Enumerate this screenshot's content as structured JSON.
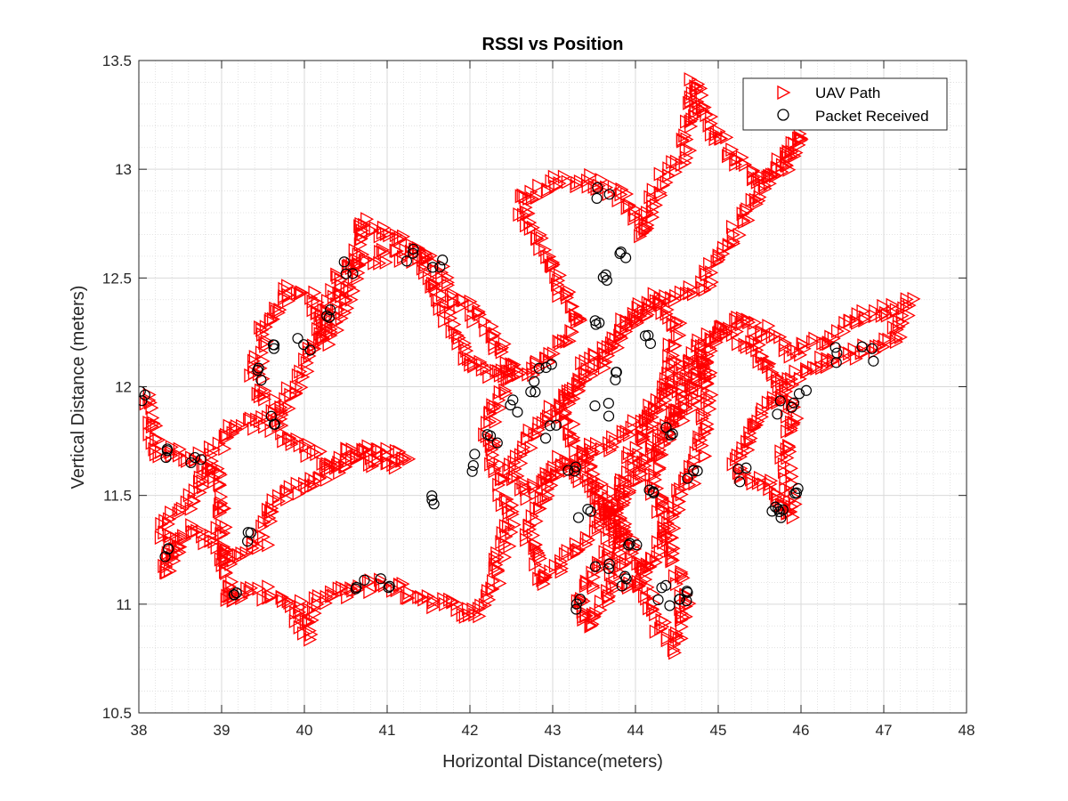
{
  "chart_data": {
    "type": "scatter",
    "title": "RSSI vs Position",
    "xlabel": "Horizontal Distance(meters)",
    "ylabel": "Vertical Distance (meters)",
    "xlim": [
      38,
      48
    ],
    "ylim": [
      10.5,
      13.5
    ],
    "xticks": [
      "38",
      "39",
      "40",
      "41",
      "42",
      "43",
      "44",
      "45",
      "46",
      "47",
      "48"
    ],
    "yticks": [
      "10.5",
      "11",
      "11.5",
      "12",
      "12.5",
      "13",
      "13.5"
    ],
    "grid": true,
    "minor_grid": true,
    "legend_position": "top-right",
    "series": [
      {
        "name": "UAV Path",
        "marker": "triangle-right",
        "color": "#ff0000",
        "path_anchors": [
          [
            38.1,
            11.95
          ],
          [
            38.2,
            11.7
          ],
          [
            38.4,
            11.7
          ],
          [
            38.9,
            11.65
          ],
          [
            38.6,
            11.45
          ],
          [
            38.3,
            11.35
          ],
          [
            38.4,
            11.2
          ],
          [
            38.3,
            11.15
          ],
          [
            38.6,
            11.35
          ],
          [
            39.0,
            11.25
          ],
          [
            39.1,
            11.2
          ],
          [
            39.5,
            11.3
          ],
          [
            39.6,
            11.45
          ],
          [
            40.0,
            11.55
          ],
          [
            40.3,
            11.6
          ],
          [
            40.7,
            11.7
          ],
          [
            41.1,
            11.7
          ],
          [
            41.2,
            11.65
          ],
          [
            40.9,
            11.65
          ],
          [
            40.6,
            11.7
          ],
          [
            40.3,
            11.65
          ],
          [
            39.9,
            11.75
          ],
          [
            39.5,
            11.85
          ],
          [
            39.1,
            11.8
          ],
          [
            38.9,
            11.7
          ],
          [
            39.1,
            11.0
          ],
          [
            39.2,
            11.05
          ],
          [
            39.6,
            11.05
          ],
          [
            39.9,
            11.0
          ],
          [
            40.0,
            10.85
          ],
          [
            40.1,
            11.0
          ],
          [
            40.4,
            11.05
          ],
          [
            40.9,
            11.1
          ],
          [
            41.3,
            11.05
          ],
          [
            41.7,
            11.0
          ],
          [
            42.1,
            10.95
          ],
          [
            42.3,
            11.1
          ],
          [
            42.5,
            11.4
          ],
          [
            42.2,
            11.8
          ],
          [
            42.5,
            12.1
          ],
          [
            42.2,
            12.3
          ],
          [
            41.8,
            12.4
          ],
          [
            41.6,
            12.55
          ],
          [
            41.3,
            12.65
          ],
          [
            41.0,
            12.7
          ],
          [
            40.7,
            12.75
          ],
          [
            40.6,
            12.5
          ],
          [
            40.3,
            12.2
          ],
          [
            40.1,
            12.4
          ],
          [
            39.8,
            12.45
          ],
          [
            39.5,
            12.25
          ],
          [
            39.4,
            12.05
          ],
          [
            39.7,
            11.85
          ],
          [
            40.0,
            12.1
          ],
          [
            40.3,
            12.35
          ],
          [
            40.5,
            12.55
          ],
          [
            40.9,
            12.6
          ],
          [
            41.4,
            12.6
          ],
          [
            41.7,
            12.35
          ],
          [
            42.0,
            12.1
          ],
          [
            42.4,
            12.05
          ],
          [
            42.9,
            12.1
          ],
          [
            43.3,
            12.3
          ],
          [
            43.0,
            12.55
          ],
          [
            42.6,
            12.85
          ],
          [
            43.1,
            12.95
          ],
          [
            43.5,
            12.95
          ],
          [
            43.9,
            12.85
          ],
          [
            44.1,
            12.7
          ],
          [
            44.3,
            12.95
          ],
          [
            44.6,
            13.05
          ],
          [
            44.7,
            13.4
          ],
          [
            44.9,
            13.2
          ],
          [
            45.1,
            13.1
          ],
          [
            45.5,
            12.95
          ],
          [
            45.8,
            13.0
          ],
          [
            46.0,
            13.15
          ],
          [
            45.6,
            12.95
          ],
          [
            45.3,
            12.75
          ],
          [
            45.0,
            12.6
          ],
          [
            44.8,
            12.45
          ],
          [
            44.4,
            12.4
          ],
          [
            44.0,
            12.3
          ],
          [
            43.7,
            12.2
          ],
          [
            43.4,
            12.1
          ],
          [
            43.1,
            11.9
          ],
          [
            43.3,
            11.7
          ],
          [
            43.6,
            11.5
          ],
          [
            43.9,
            11.3
          ],
          [
            44.1,
            11.1
          ],
          [
            44.3,
            10.9
          ],
          [
            44.5,
            10.8
          ],
          [
            44.6,
            11.0
          ],
          [
            44.4,
            11.3
          ],
          [
            44.2,
            11.6
          ],
          [
            44.5,
            11.9
          ],
          [
            44.8,
            12.2
          ],
          [
            45.2,
            12.3
          ],
          [
            45.6,
            12.25
          ],
          [
            45.9,
            12.15
          ],
          [
            46.2,
            12.2
          ],
          [
            46.6,
            12.3
          ],
          [
            47.0,
            12.35
          ],
          [
            47.3,
            12.4
          ],
          [
            47.1,
            12.2
          ],
          [
            46.6,
            12.15
          ],
          [
            46.2,
            12.1
          ],
          [
            45.8,
            12.0
          ],
          [
            45.6,
            11.9
          ],
          [
            45.4,
            11.8
          ],
          [
            45.2,
            11.6
          ],
          [
            45.6,
            11.55
          ],
          [
            45.9,
            11.4
          ],
          [
            45.8,
            11.7
          ],
          [
            45.9,
            11.9
          ],
          [
            45.4,
            12.2
          ],
          [
            45.0,
            12.25
          ],
          [
            44.6,
            11.9
          ],
          [
            44.2,
            11.7
          ],
          [
            43.9,
            11.5
          ],
          [
            43.6,
            11.2
          ],
          [
            43.3,
            11.0
          ],
          [
            43.4,
            10.9
          ],
          [
            43.7,
            11.05
          ],
          [
            43.9,
            11.3
          ],
          [
            43.5,
            11.55
          ],
          [
            43.1,
            11.65
          ],
          [
            42.7,
            11.5
          ],
          [
            42.5,
            11.6
          ],
          [
            42.8,
            11.8
          ],
          [
            43.2,
            11.95
          ],
          [
            43.6,
            12.1
          ],
          [
            43.9,
            12.3
          ],
          [
            44.2,
            12.4
          ],
          [
            44.5,
            12.3
          ],
          [
            44.4,
            12.0
          ],
          [
            44.1,
            11.85
          ],
          [
            43.8,
            11.75
          ],
          [
            43.4,
            11.7
          ],
          [
            43.0,
            11.6
          ],
          [
            42.7,
            11.3
          ],
          [
            42.9,
            11.1
          ],
          [
            43.3,
            11.25
          ],
          [
            43.7,
            11.45
          ],
          [
            44.0,
            11.7
          ],
          [
            44.3,
            11.95
          ],
          [
            44.6,
            12.1
          ],
          [
            44.9,
            12.1
          ],
          [
            44.8,
            11.7
          ],
          [
            44.5,
            11.45
          ],
          [
            44.2,
            11.2
          ],
          [
            43.9,
            11.05
          ]
        ]
      },
      {
        "name": "Packet Received",
        "marker": "circle",
        "color": "#000000",
        "path_anchors": [
          [
            38.1,
            11.95
          ],
          [
            38.3,
            11.7
          ],
          [
            38.3,
            11.25
          ],
          [
            38.7,
            11.65
          ],
          [
            39.2,
            11.05
          ],
          [
            39.4,
            11.3
          ],
          [
            39.6,
            11.85
          ],
          [
            39.5,
            12.05
          ],
          [
            39.7,
            12.2
          ],
          [
            40.0,
            12.2
          ],
          [
            40.3,
            12.35
          ],
          [
            40.5,
            12.55
          ],
          [
            41.3,
            12.6
          ],
          [
            41.6,
            12.55
          ],
          [
            40.7,
            11.1
          ],
          [
            41.0,
            11.1
          ],
          [
            41.6,
            11.5
          ],
          [
            42.1,
            11.65
          ],
          [
            42.3,
            11.75
          ],
          [
            42.5,
            11.9
          ],
          [
            42.7,
            12.0
          ],
          [
            42.9,
            12.1
          ],
          [
            43.0,
            11.8
          ],
          [
            43.2,
            11.65
          ],
          [
            43.4,
            11.4
          ],
          [
            43.6,
            11.2
          ],
          [
            43.3,
            11.0
          ],
          [
            43.8,
            11.1
          ],
          [
            44.0,
            11.3
          ],
          [
            44.3,
            11.05
          ],
          [
            44.5,
            11.0
          ],
          [
            44.6,
            11.05
          ],
          [
            44.2,
            11.5
          ],
          [
            44.4,
            11.8
          ],
          [
            44.7,
            11.6
          ],
          [
            43.6,
            11.9
          ],
          [
            43.8,
            12.05
          ],
          [
            44.1,
            12.2
          ],
          [
            43.5,
            12.3
          ],
          [
            43.7,
            12.5
          ],
          [
            43.9,
            12.6
          ],
          [
            43.6,
            12.9
          ],
          [
            45.3,
            11.6
          ],
          [
            45.7,
            11.45
          ],
          [
            45.8,
            11.4
          ],
          [
            45.9,
            11.5
          ],
          [
            46.0,
            11.95
          ],
          [
            46.4,
            12.15
          ],
          [
            46.8,
            12.15
          ],
          [
            45.8,
            11.9
          ]
        ]
      }
    ]
  }
}
